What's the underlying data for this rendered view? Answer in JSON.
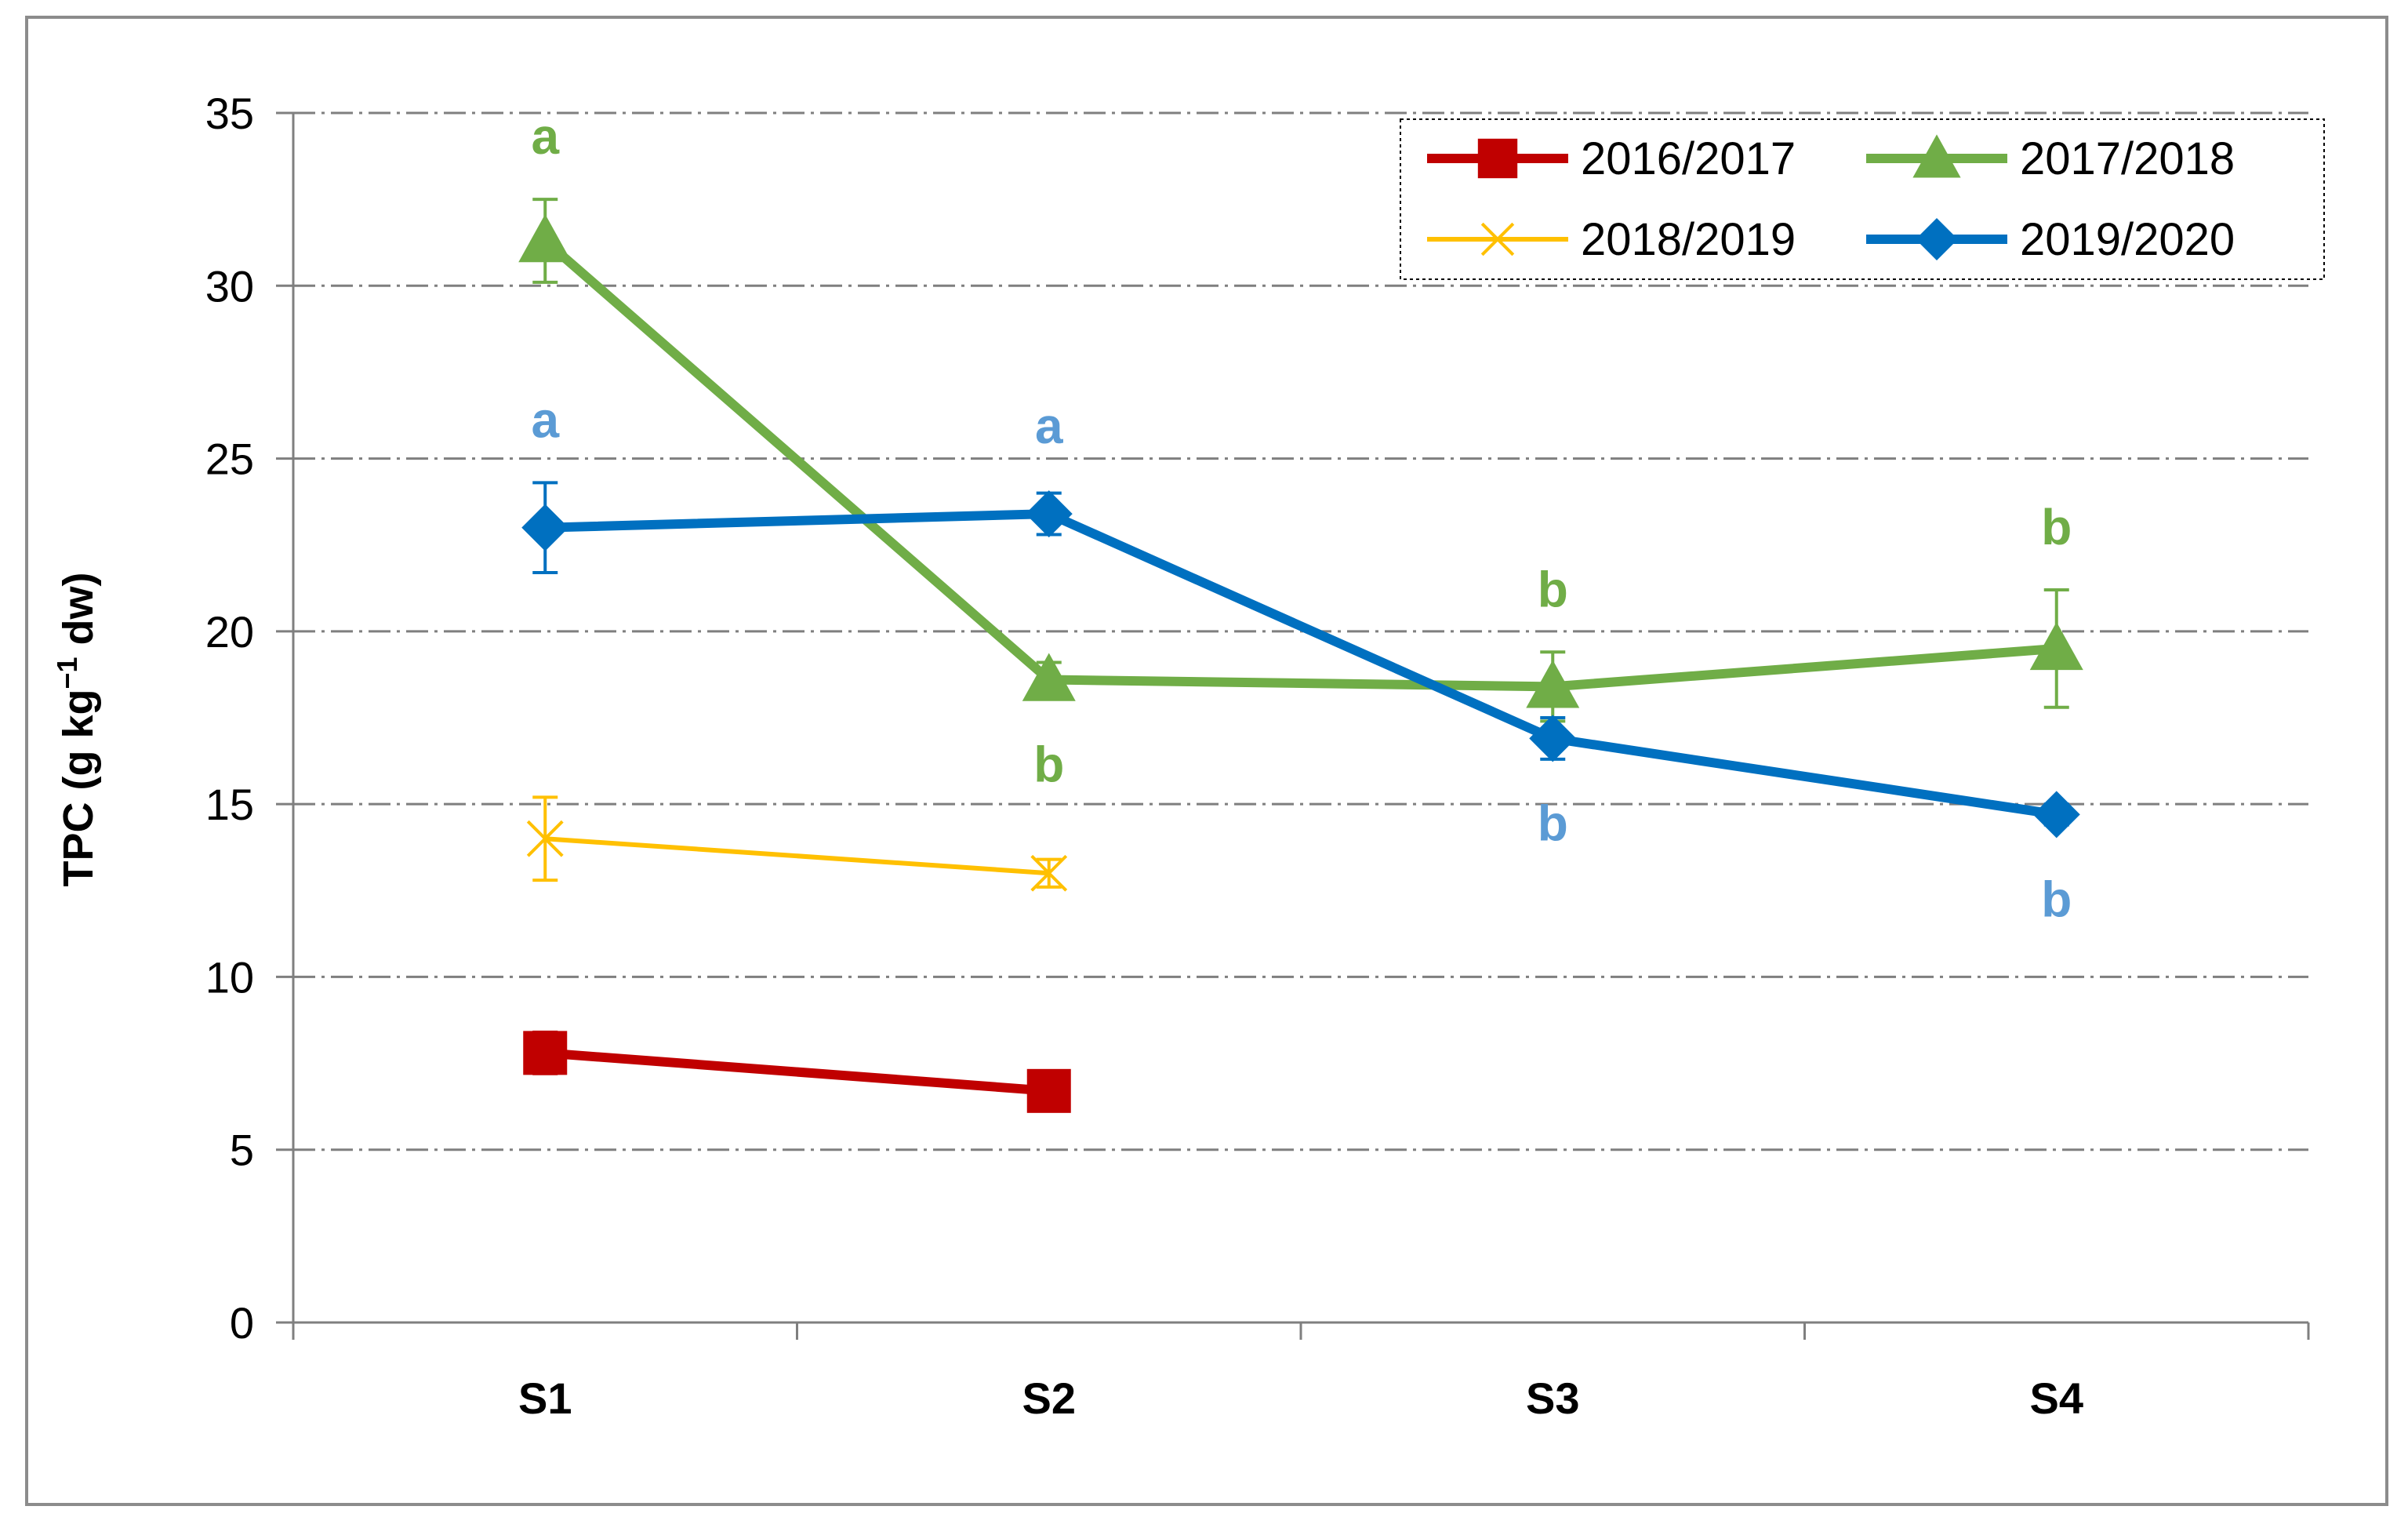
{
  "chart_data": {
    "type": "line",
    "title": "",
    "xlabel": "",
    "ylabel": {
      "main": "TPC (g kg",
      "sup": "−1",
      "tail": " dw)"
    },
    "categories": [
      "S1",
      "S2",
      "S3",
      "S4"
    ],
    "ylim": [
      0,
      35
    ],
    "yticks": [
      "0",
      "5",
      "10",
      "15",
      "20",
      "25",
      "30",
      "35"
    ],
    "grid": "horizontal dash-dot",
    "legend_position": "top-right",
    "series": [
      {
        "name": "2016/2017",
        "color": "#c00000",
        "marker": "square",
        "values": [
          7.8,
          6.7,
          null,
          null
        ],
        "errors": [
          0.6,
          0.4,
          null,
          null
        ],
        "labels": [
          "",
          "",
          "",
          ""
        ]
      },
      {
        "name": "2017/2018",
        "color": "#70ad47",
        "marker": "triangle",
        "values": [
          31.3,
          18.6,
          18.4,
          19.5
        ],
        "errors": [
          1.2,
          0.5,
          1.0,
          1.7
        ],
        "labels": [
          "a",
          "b",
          "b",
          "b"
        ]
      },
      {
        "name": "2018/2019",
        "color": "#ffc000",
        "marker": "x",
        "values": [
          14.0,
          13.0,
          null,
          null
        ],
        "errors": [
          1.2,
          0.4,
          null,
          null
        ],
        "labels": [
          "",
          "",
          "",
          ""
        ]
      },
      {
        "name": "2019/2020",
        "color": "#0070c0",
        "labelColor": "#5b9bd5",
        "marker": "diamond",
        "values": [
          23.0,
          23.4,
          16.9,
          14.7
        ],
        "errors": [
          1.3,
          0.6,
          0.6,
          0.3
        ],
        "labels": [
          "a",
          "a",
          "b",
          "b"
        ]
      }
    ]
  }
}
